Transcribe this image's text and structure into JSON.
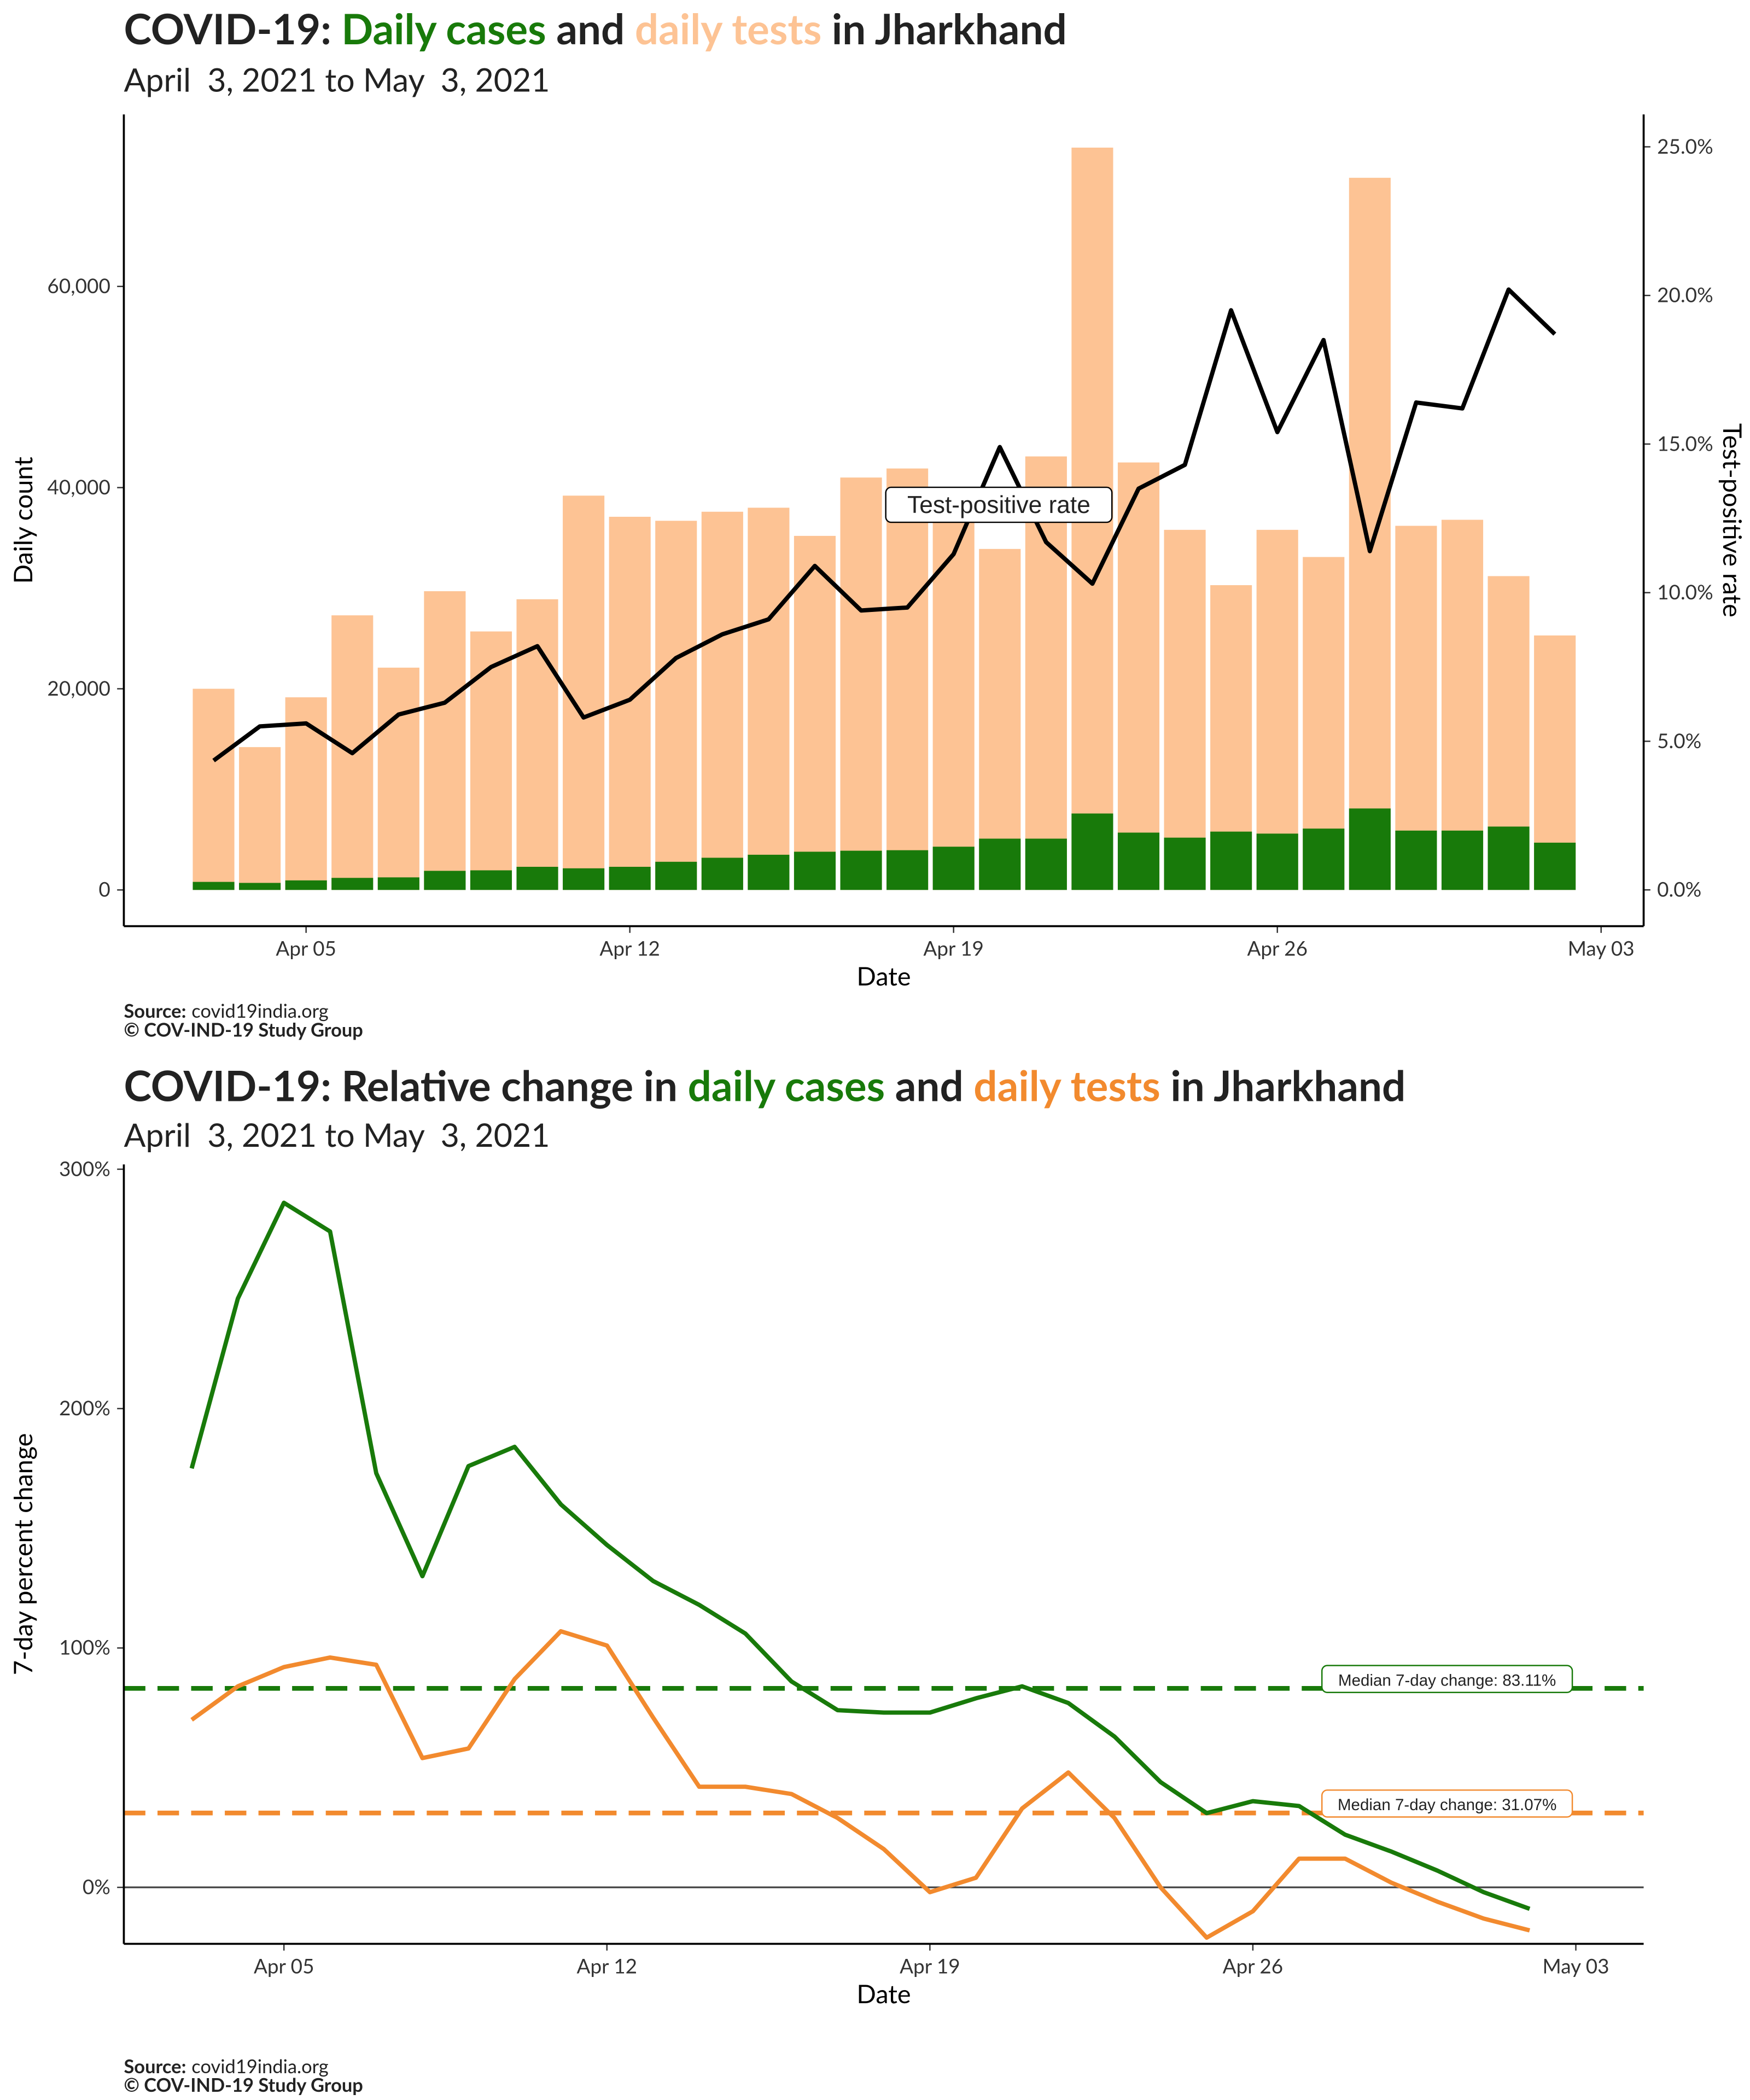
{
  "chart_data": [
    {
      "type": "bar",
      "title": [
        "COVID-19: ",
        "Daily cases",
        " and ",
        "daily tests",
        " in Jharkhand"
      ],
      "subtitle": "April  3, 2021 to May  3, 2021",
      "x_label": "Date",
      "y_label": "Daily count",
      "y2_label": "Test-positive rate",
      "source_label": "Source:",
      "source": "covid19india.org",
      "copyright": "© COV-IND-19 Study Group",
      "x": [
        3,
        4,
        5,
        6,
        7,
        8,
        9,
        10,
        11,
        12,
        13,
        14,
        15,
        16,
        17,
        18,
        19,
        20,
        21,
        22,
        23,
        24,
        25,
        26,
        27,
        28,
        29,
        30,
        31,
        32
      ],
      "series": [
        {
          "color": "#fdc394",
          "values": [
            20000,
            14200,
            19150,
            27300,
            22100,
            29700,
            25700,
            28900,
            39200,
            37100,
            36700,
            37600,
            38000,
            35200,
            41000,
            41900,
            38500,
            33900,
            43100,
            73800,
            42500,
            35800,
            30300,
            35800,
            33100,
            70800,
            36200,
            36800,
            31200,
            25300
          ]
        },
        {
          "color": "#187a0a",
          "values": [
            800,
            700,
            950,
            1200,
            1250,
            1900,
            1950,
            2300,
            2150,
            2300,
            2800,
            3200,
            3500,
            3800,
            3900,
            3950,
            4300,
            5100,
            5100,
            7600,
            5700,
            5200,
            5800,
            5600,
            6100,
            8100,
            5900,
            5900,
            6300,
            4700
          ]
        },
        {
          "type": "line",
          "name": "Test-positive rate",
          "axis": "y2",
          "color": "#000000",
          "values": [
            4.35,
            5.5,
            5.6,
            4.6,
            5.9,
            6.3,
            7.5,
            8.2,
            5.8,
            6.4,
            7.8,
            8.6,
            9.1,
            10.9,
            9.4,
            9.5,
            11.3,
            14.9,
            11.7,
            10.3,
            13.5,
            14.3,
            19.5,
            15.4,
            18.5,
            11.4,
            16.4,
            16.2,
            20.2,
            18.7
          ]
        }
      ],
      "xlim": [
        1.06,
        33.92
      ],
      "xticks": [
        {
          "value": 5,
          "label": "Apr 05"
        },
        {
          "value": 12,
          "label": "Apr 12"
        },
        {
          "value": 19,
          "label": "Apr 19"
        },
        {
          "value": 26,
          "label": "Apr 26"
        },
        {
          "value": 33,
          "label": "May 03"
        }
      ],
      "ylim": [
        -3600,
        77100
      ],
      "yticks": [
        0,
        {
          "value": 20000,
          "label": "20,000"
        },
        {
          "value": 40000,
          "label": "40,000"
        },
        {
          "value": 60000,
          "label": "60,000"
        }
      ],
      "y2lim": [
        -1.22,
        26.09
      ],
      "y2ticks": [
        {
          "value": 0,
          "label": "0.0%"
        },
        {
          "value": 5,
          "label": "5.0%"
        },
        {
          "value": 10,
          "label": "10.0%"
        },
        {
          "value": 15,
          "label": "15.0%"
        },
        {
          "value": 20,
          "label": "20.0%"
        },
        {
          "value": 25,
          "label": "25.0%"
        }
      ]
    },
    {
      "type": "line",
      "title": [
        "COVID-19: Relative change in ",
        "daily cases",
        " and ",
        "daily tests",
        " in Jharkhand"
      ],
      "subtitle": "April  3, 2021 to May  3, 2021",
      "x_label": "Date",
      "y_label": "7-day percent change",
      "source_label": "Source:",
      "source": "covid19india.org",
      "copyright": "© COV-IND-19 Study Group",
      "x": [
        3,
        4,
        5,
        6,
        7,
        8,
        9,
        10,
        11,
        12,
        13,
        14,
        15,
        16,
        17,
        18,
        19,
        20,
        21,
        22,
        23,
        24,
        25,
        26,
        27,
        28,
        29,
        30,
        31,
        32
      ],
      "series": [
        {
          "color": "#187a0a",
          "values": [
            175,
            246,
            286,
            274,
            173,
            130,
            176,
            184,
            160,
            143,
            128,
            118,
            106,
            86,
            74,
            73,
            73,
            79,
            84,
            77,
            63,
            44,
            31,
            36,
            34,
            22,
            15,
            7,
            -2,
            -9
          ]
        },
        {
          "color": "#f28a2e",
          "values": [
            70,
            84,
            92,
            96,
            93,
            54,
            58,
            87,
            107,
            101,
            71,
            42,
            42,
            39,
            29,
            16,
            -2,
            4,
            33,
            48,
            29,
            0,
            -21,
            -10,
            12,
            12,
            2,
            -6,
            -13,
            -18
          ]
        }
      ],
      "reference_lines": [
        {
          "value": 83.11,
          "label": "Median 7-day change: 83.11%",
          "color": "#187a0a"
        },
        {
          "value": 31.07,
          "label": "Median 7-day change: 31.07%",
          "color": "#f28a2e"
        }
      ],
      "xlim": [
        1.53,
        34.47
      ],
      "xticks": [
        {
          "value": 5,
          "label": "Apr 05"
        },
        {
          "value": 12,
          "label": "Apr 12"
        },
        {
          "value": 19,
          "label": "Apr 19"
        },
        {
          "value": 26,
          "label": "Apr 26"
        },
        {
          "value": 33,
          "label": "May 03"
        }
      ],
      "ylim": [
        -23.6,
        302
      ],
      "yticks": [
        {
          "value": 0,
          "label": "0%"
        },
        {
          "value": 100,
          "label": "100%"
        },
        {
          "value": 200,
          "label": "200%"
        },
        {
          "value": 300,
          "label": "300%"
        }
      ]
    }
  ]
}
